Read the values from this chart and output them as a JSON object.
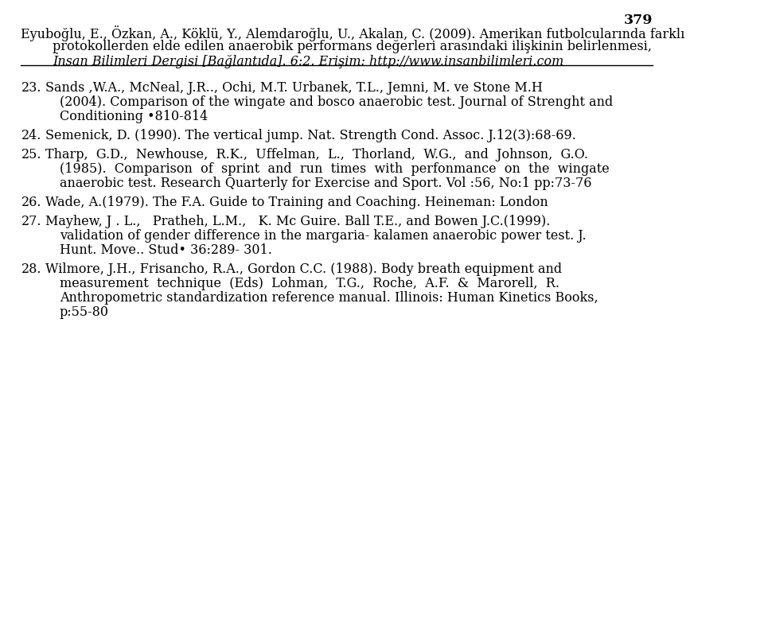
{
  "page_number": "379",
  "background_color": "#ffffff",
  "text_color": "#000000",
  "header_lines": [
    "Eyuboğlu, E., Özkan, A., Köklü, Y., Alemdaroğlu, U., Akalan, C. (2009). Amerikan futbolcularında farklı",
    "protokollerden elde edilen anaerobik performans değerleri arasındaki ilişkinin belirlenmesi, İnsan Bilimleri Dergisi [Bağlantıda]. 6:2. Erişim: http://www.insanbilimleri.com"
  ],
  "header_italic_part": "İnsan Bilimleri Dergisi",
  "references": [
    {
      "number": "23.",
      "lines": [
        "Sands ,W.A., McNeal, J.R.., Ochi, M.T. Urbanek, T.L., Jemni, M. ve Stone M.H",
        "(2004). Comparison of the wingate and bosco anaerobic test. Journal of Strenght and",
        "Conditioning •810-814"
      ]
    },
    {
      "number": "24.",
      "lines": [
        "Semenick, D. (1990). The vertical jump. Nat. Strength Cond. Assoc. J.12(3):68-69."
      ]
    },
    {
      "number": "25.",
      "lines": [
        "Tharp,  G.D.,  Newhouse,  R.K.,  Uffelman,  L.,  Thorland,  W.G.,  and  Johnson,  G.O.",
        "(1985).  Comparison  of  sprint  and  run  times  with  perfonmance  on  the  wingate",
        "anaerobic test. Research Quarterly for Exercise and Sport. Vol :56, No:1 pp:73-76"
      ]
    },
    {
      "number": "26.",
      "lines": [
        "Wade, A.(1979). The F.A. Guide to Training and Coaching. Heineman: London"
      ]
    },
    {
      "number": "27.",
      "lines": [
        "Mayhew, J . L.,   Pratheh, L.M.,   K. Mc Guire. Ball T.E., and Bowen J.C.(1999).",
        "validation of gender difference in the margaria- kalamen anaerobic power test. J.",
        "Hunt. Move.. Stud• 36:289- 301."
      ]
    },
    {
      "number": "28.",
      "lines": [
        "Wilmore, J.H., Frisancho, R.A., Gordon C.C. (1988). Body breath equipment and",
        "measurement  technique  (Eds)  Lohman,  T.G.,  Roche,  A.F.  &  Marorell,  R.",
        "Anthropometric standardization reference manual. Illinois: Human Kinetics Books,",
        "p:55-80"
      ]
    }
  ]
}
